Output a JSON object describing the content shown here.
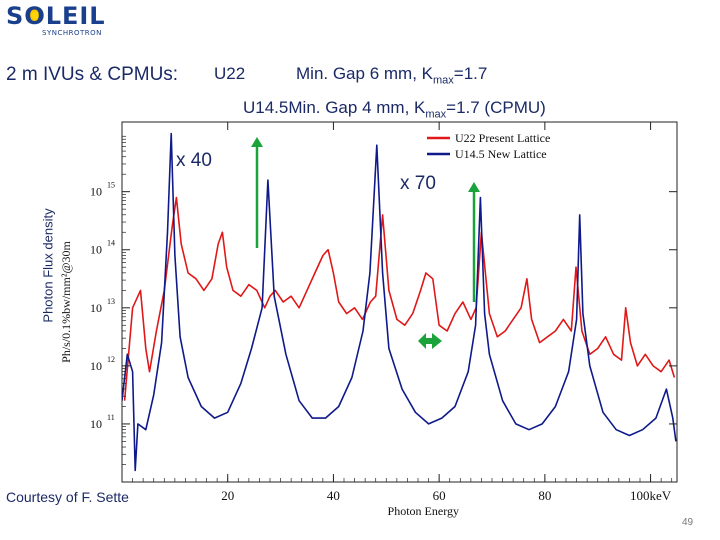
{
  "logo": {
    "main": "SOLEIL",
    "sub": "SYNCHROTRON"
  },
  "header": {
    "title": "2 m IVUs & CPMUs:",
    "u22_label": "U22",
    "u22_gap": "Min. Gap 6 mm, K",
    "u22_sub": "max",
    "u22_k": "=1.7",
    "u145_label": "U14.5",
    "u145_gap": "Min. Gap 4 mm, K",
    "u145_sub": "max",
    "u145_k": "=1.7 (CPMU)"
  },
  "side_label": "Photon Flux density",
  "annotations": {
    "gain_1": "x 40",
    "gain_2": "x 70",
    "credit": "Courtesy of F. Sette"
  },
  "page_number": "49",
  "chart_data": {
    "type": "line",
    "xlabel": "Photon Energy",
    "ylabel": "Ph/s/0.1%bw/mm²@30m",
    "xlim": [
      0,
      105
    ],
    "ylim": [
      10,
      16.2
    ],
    "y_scale": "log",
    "x_ticks": [
      {
        "value": 20,
        "label": "20"
      },
      {
        "value": 40,
        "label": "40"
      },
      {
        "value": 60,
        "label": "60"
      },
      {
        "value": 80,
        "label": "80"
      },
      {
        "value": 100,
        "label": "100keV"
      }
    ],
    "y_ticks": [
      {
        "value": 11,
        "base": "10",
        "exp": "11"
      },
      {
        "value": 12,
        "base": "10",
        "exp": "12"
      },
      {
        "value": 13,
        "base": "10",
        "exp": "13"
      },
      {
        "value": 14,
        "base": "10",
        "exp": "14"
      },
      {
        "value": 15,
        "base": "10",
        "exp": "15"
      }
    ],
    "legend_position": "top-right",
    "series": [
      {
        "name": "U22 Present Lattice",
        "color": "#e01818",
        "x": [
          0.5,
          2,
          3.5,
          4.5,
          5.2,
          6.5,
          8,
          9.5,
          10.3,
          11.2,
          12.5,
          14,
          15.5,
          17,
          18.2,
          19,
          19.8,
          21,
          22.5,
          24,
          25.5,
          27,
          28,
          29,
          30.5,
          32,
          33.5,
          35,
          36.5,
          38,
          39,
          40,
          41,
          42.5,
          44,
          45.5,
          47,
          48,
          49.3,
          50.5,
          52,
          53.5,
          55,
          56.5,
          57.5,
          58.8,
          60,
          61.5,
          63,
          64.5,
          66,
          67,
          68,
          69.5,
          71,
          72.5,
          74,
          75.5,
          76.6,
          77.5,
          79,
          80.5,
          82,
          83.5,
          85,
          85.9,
          87,
          88.5,
          90,
          91.5,
          93,
          94.5,
          95.3,
          96.2,
          97.5,
          99,
          100.5,
          102,
          103.5,
          104.5
        ],
        "y": [
          11.4,
          13.0,
          13.3,
          12.3,
          11.9,
          12.6,
          13.3,
          14.4,
          14.9,
          14.1,
          13.6,
          13.5,
          13.3,
          13.5,
          14.1,
          14.3,
          13.7,
          13.3,
          13.2,
          13.4,
          13.3,
          13.0,
          13.2,
          13.3,
          13.1,
          13.2,
          13.0,
          13.3,
          13.6,
          13.9,
          14.0,
          13.6,
          13.1,
          12.9,
          13.0,
          12.8,
          13.1,
          13.2,
          14.6,
          13.3,
          12.8,
          12.7,
          12.9,
          13.3,
          13.6,
          13.5,
          12.7,
          12.6,
          12.9,
          13.1,
          12.8,
          13.0,
          14.3,
          12.9,
          12.5,
          12.6,
          12.8,
          13.0,
          13.5,
          12.8,
          12.4,
          12.5,
          12.6,
          12.8,
          12.6,
          13.7,
          12.6,
          12.2,
          12.3,
          12.5,
          12.2,
          12.1,
          13.0,
          12.4,
          12.0,
          12.2,
          12.0,
          11.9,
          12.1,
          11.8
        ]
      },
      {
        "name": "U14.5 New Lattice",
        "color": "#0f1a8a",
        "x": [
          0,
          1,
          2,
          2.5,
          3,
          4.5,
          6,
          7.5,
          8.6,
          9.3,
          10,
          11,
          12.5,
          15,
          17.5,
          20,
          22.5,
          24.5,
          26.5,
          27.6,
          28.8,
          31,
          33.5,
          36,
          38.5,
          41,
          43.5,
          45.6,
          46.9,
          48.2,
          49.3,
          50.5,
          53,
          55.5,
          58,
          60.5,
          63,
          65.5,
          66.9,
          67.8,
          68.6,
          69.5,
          72,
          74.5,
          77,
          79.5,
          82,
          84.5,
          86,
          86.6,
          87.2,
          88.5,
          91,
          93.5,
          96,
          98.5,
          101,
          103,
          104.2,
          104.8
        ],
        "y": [
          11.4,
          12.2,
          11.9,
          10.2,
          11.0,
          10.9,
          11.5,
          12.4,
          14.3,
          16.0,
          13.9,
          12.5,
          11.8,
          11.3,
          11.1,
          11.2,
          11.7,
          12.3,
          13.0,
          15.2,
          13.2,
          12.2,
          11.4,
          11.1,
          11.1,
          11.3,
          11.8,
          12.6,
          13.6,
          15.8,
          13.6,
          12.3,
          11.6,
          11.2,
          11.0,
          11.1,
          11.3,
          11.9,
          12.7,
          14.9,
          12.9,
          12.2,
          11.4,
          11.0,
          10.9,
          11.0,
          11.3,
          11.9,
          12.8,
          14.6,
          12.9,
          12.0,
          11.2,
          10.9,
          10.8,
          10.9,
          11.1,
          11.6,
          11.1,
          10.7
        ]
      }
    ]
  }
}
